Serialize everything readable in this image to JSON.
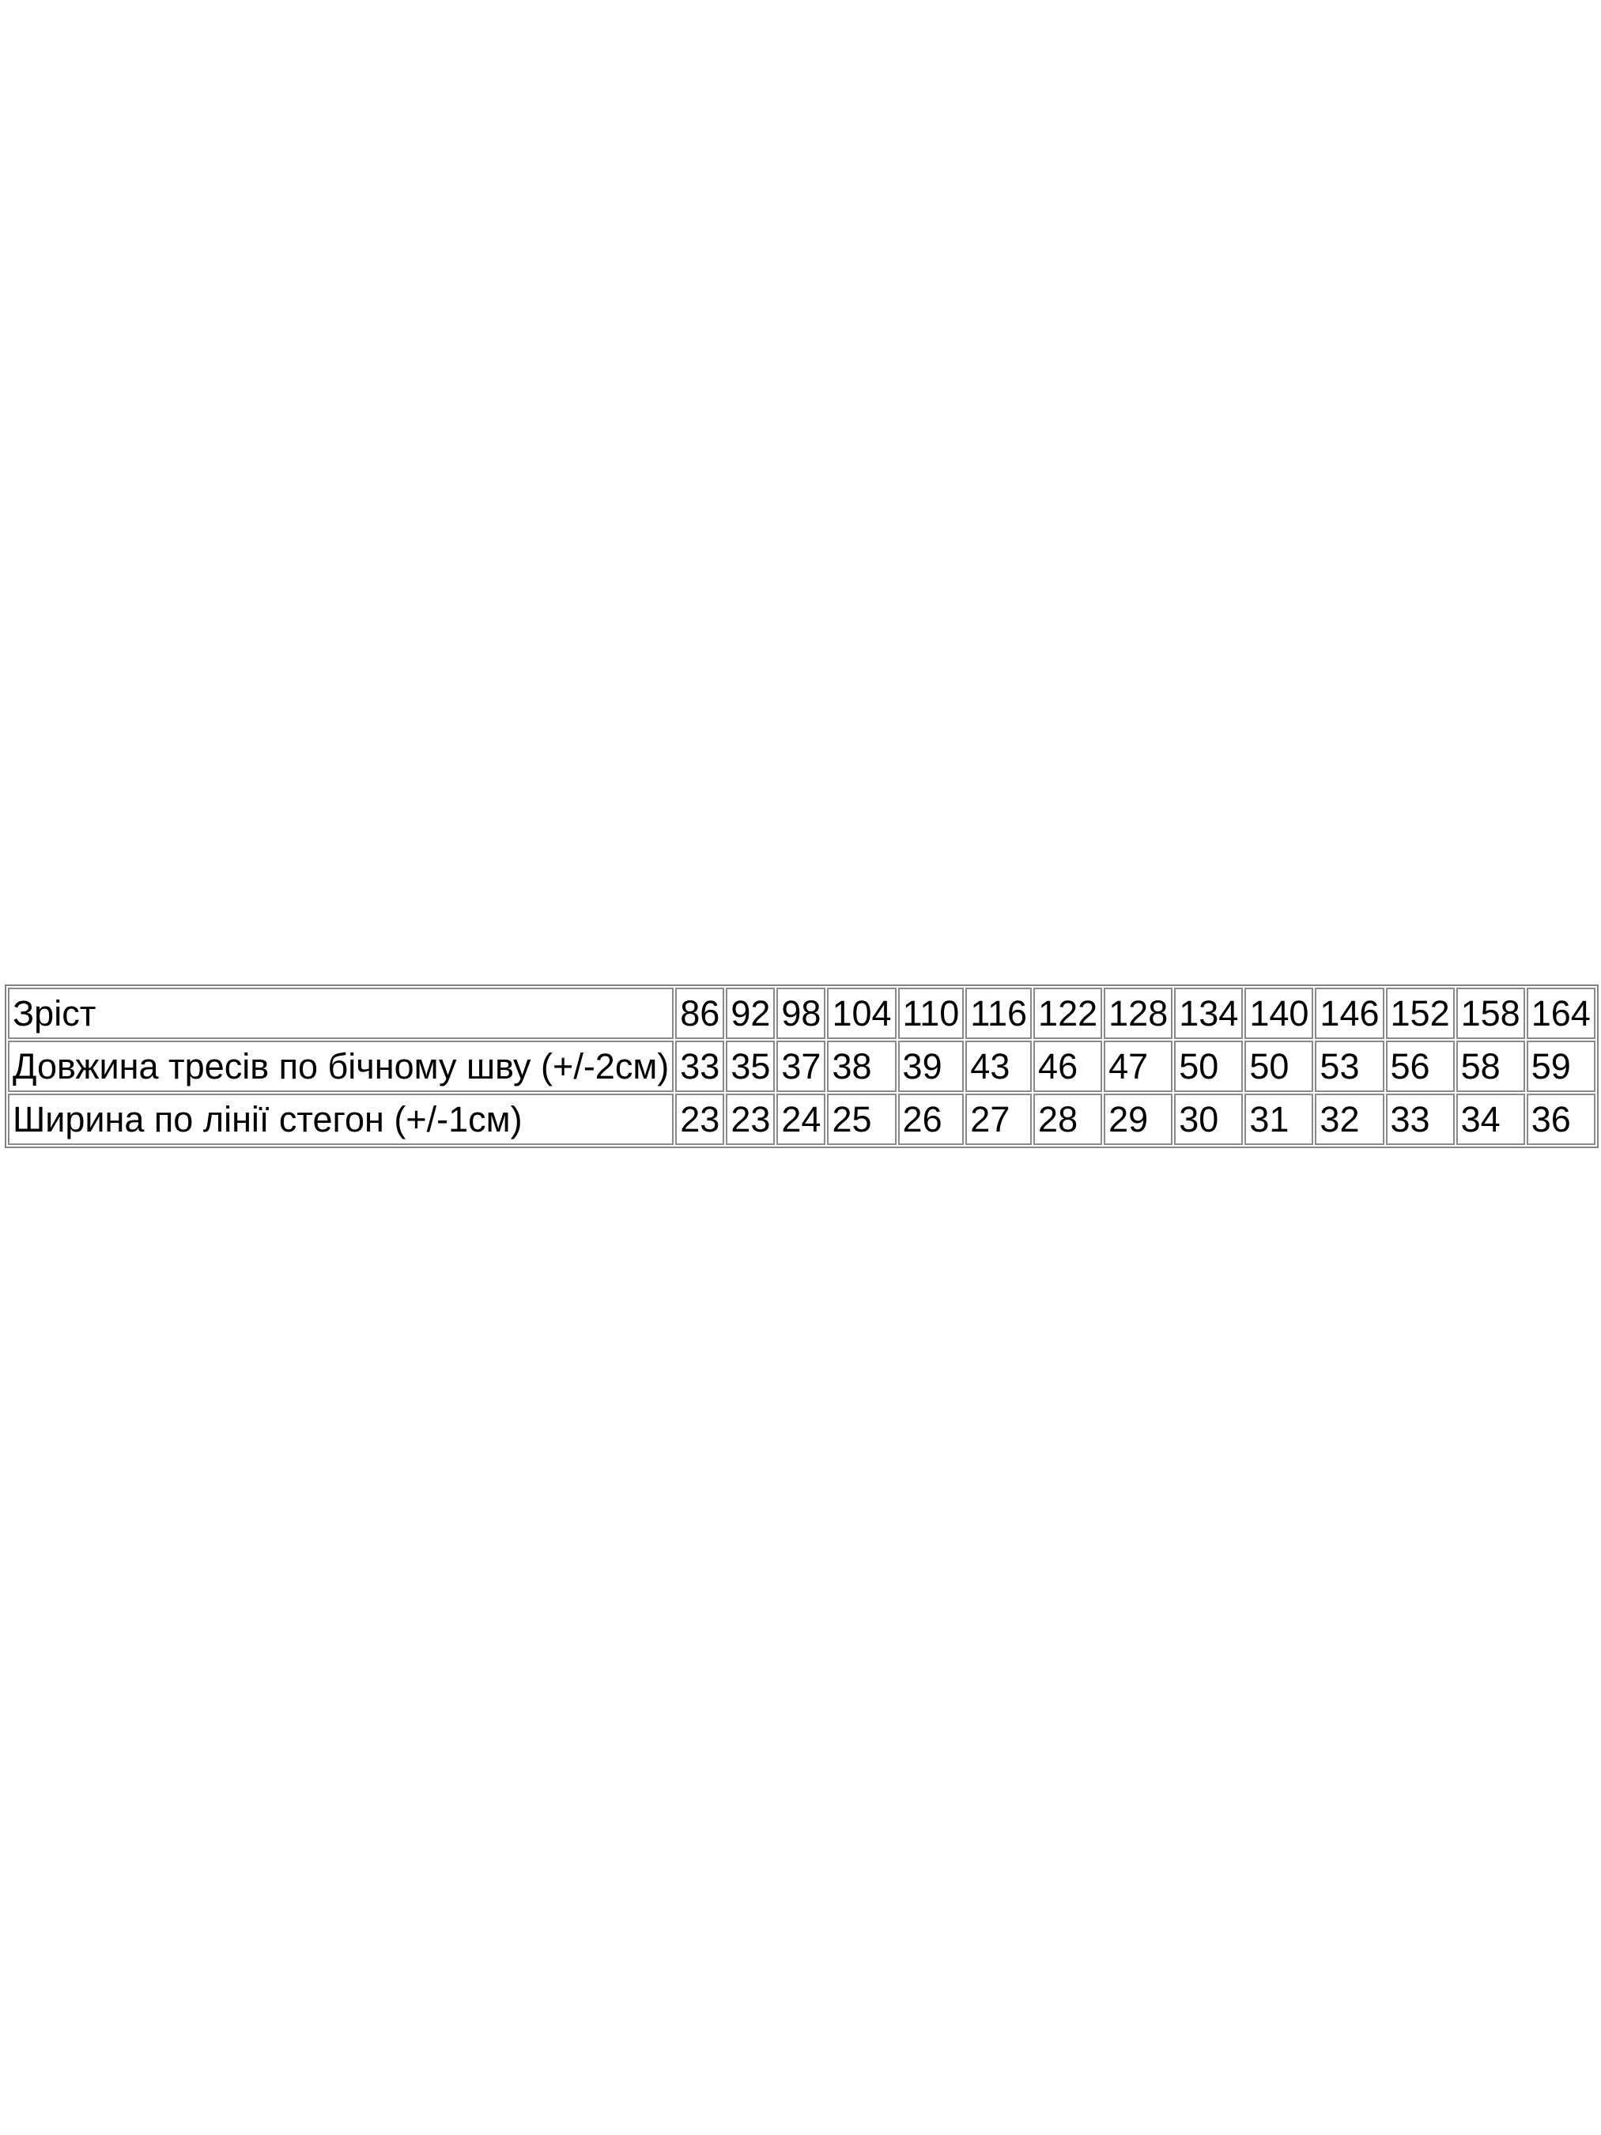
{
  "page": {
    "background_color": "#ffffff",
    "text_color": "#000000",
    "table_border_color": "#8a8a8a"
  },
  "table": {
    "rows": [
      {
        "label": "Зріст",
        "values": [
          "86",
          "92",
          "98",
          "104",
          "110",
          "116",
          "122",
          "128",
          "134",
          "140",
          "146",
          "152",
          "158",
          "164"
        ]
      },
      {
        "label": "Довжина тресів по бічному шву (+/-2см)",
        "values": [
          "33",
          "35",
          "37",
          "38",
          "39",
          "43",
          "46",
          "47",
          "50",
          "50",
          "53",
          "56",
          "58",
          "59"
        ]
      },
      {
        "label": "Ширина по лінії стегон (+/-1см)",
        "values": [
          "23",
          "23",
          "24",
          "25",
          "26",
          "27",
          "28",
          "29",
          "30",
          "31",
          "32",
          "33",
          "34",
          "36"
        ]
      }
    ]
  },
  "chart_data": {
    "type": "table",
    "title": "",
    "categories": [
      86,
      92,
      98,
      104,
      110,
      116,
      122,
      128,
      134,
      140,
      146,
      152,
      158,
      164
    ],
    "series": [
      {
        "name": "Зріст",
        "values": [
          86,
          92,
          98,
          104,
          110,
          116,
          122,
          128,
          134,
          140,
          146,
          152,
          158,
          164
        ]
      },
      {
        "name": "Довжина тресів по бічному шву (+/-2см)",
        "values": [
          33,
          35,
          37,
          38,
          39,
          43,
          46,
          47,
          50,
          50,
          53,
          56,
          58,
          59
        ]
      },
      {
        "name": "Ширина по лінії стегон (+/-1см)",
        "values": [
          23,
          23,
          24,
          25,
          26,
          27,
          28,
          29,
          30,
          31,
          32,
          33,
          34,
          36
        ]
      }
    ]
  }
}
